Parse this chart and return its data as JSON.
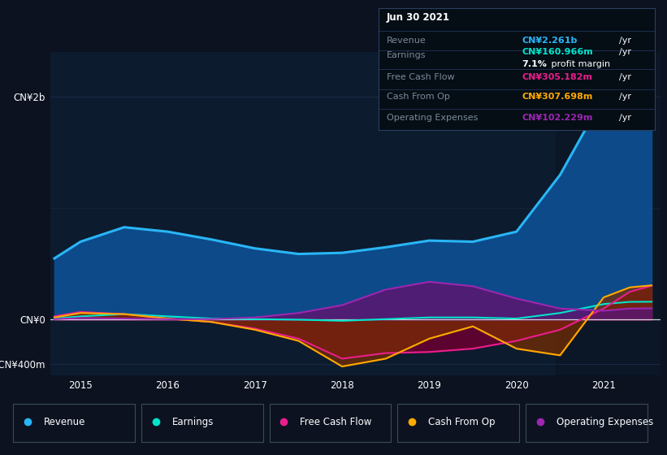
{
  "bg_color": "#0c1220",
  "plot_bg_color": "#0d1b2e",
  "grid_color": "#1e3050",
  "years": [
    2014.7,
    2015.0,
    2015.5,
    2016.0,
    2016.5,
    2017.0,
    2017.5,
    2018.0,
    2018.5,
    2019.0,
    2019.5,
    2020.0,
    2020.5,
    2021.0,
    2021.3,
    2021.55
  ],
  "revenue": [
    550,
    700,
    830,
    790,
    720,
    640,
    590,
    600,
    650,
    710,
    700,
    790,
    1300,
    2000,
    2200,
    2261
  ],
  "earnings": [
    10,
    30,
    50,
    30,
    10,
    5,
    0,
    -10,
    5,
    20,
    20,
    10,
    60,
    140,
    160,
    161
  ],
  "free_cash_flow": [
    30,
    70,
    50,
    10,
    -20,
    -80,
    -170,
    -350,
    -300,
    -290,
    -260,
    -190,
    -90,
    100,
    250,
    305
  ],
  "cash_from_op": [
    20,
    60,
    50,
    10,
    -20,
    -90,
    -190,
    -420,
    -350,
    -170,
    -60,
    -260,
    -320,
    200,
    290,
    308
  ],
  "operating_expenses": [
    5,
    15,
    10,
    5,
    5,
    20,
    60,
    130,
    270,
    340,
    300,
    190,
    100,
    80,
    100,
    102
  ],
  "revenue_color": "#29b6f6",
  "earnings_color": "#00e5cc",
  "fcf_color": "#e91e8c",
  "cfo_color": "#ffaa00",
  "opex_color": "#9c27b0",
  "revenue_fill": "#0d4a8a",
  "fcf_fill": "#6b0030",
  "cfo_fill": "#7a2e00",
  "opex_fill": "#5b1670",
  "ylim_min": -500,
  "ylim_max": 2400,
  "info_box": {
    "date": "Jun 30 2021",
    "revenue_val": "CN¥2.261b",
    "earnings_val": "CN¥160.966m",
    "profit_margin": "7.1%",
    "fcf_val": "CN¥305.182m",
    "cfo_val": "CN¥307.698m",
    "opex_val": "CN¥102.229m"
  },
  "legend_items": [
    "Revenue",
    "Earnings",
    "Free Cash Flow",
    "Cash From Op",
    "Operating Expenses"
  ]
}
